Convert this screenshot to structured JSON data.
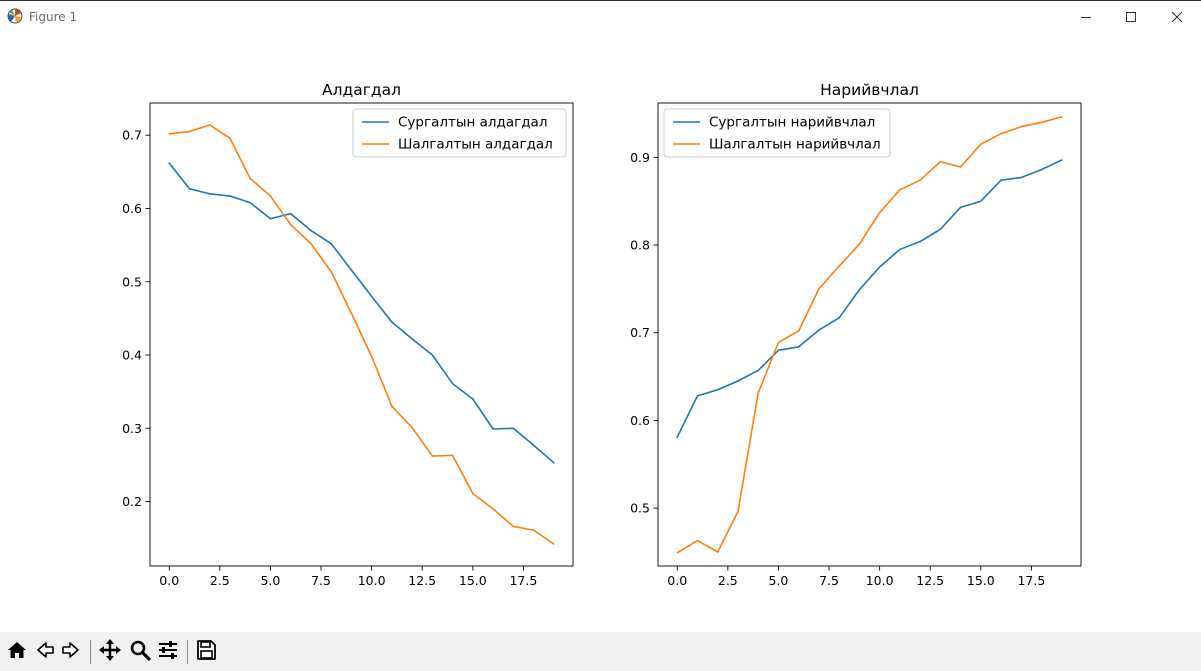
{
  "window": {
    "title": "Figure 1",
    "icons": {
      "app": "matplotlib-icon",
      "minimize": "minimize-icon",
      "maximize": "maximize-icon",
      "close": "close-icon"
    }
  },
  "toolbar": {
    "buttons": [
      {
        "name": "home-button",
        "icon": "home-icon"
      },
      {
        "name": "back-button",
        "icon": "back-arrow-icon"
      },
      {
        "name": "forward-button",
        "icon": "forward-arrow-icon"
      },
      {
        "name": "pan-button",
        "icon": "move-icon"
      },
      {
        "name": "zoom-button",
        "icon": "magnifier-icon"
      },
      {
        "name": "configure-subplots-button",
        "icon": "sliders-icon"
      },
      {
        "name": "save-button",
        "icon": "floppy-disk-icon"
      }
    ]
  },
  "colors": {
    "series_1": "#1f77b4",
    "series_2": "#ff7f0e"
  },
  "chart_data": [
    {
      "type": "line",
      "title": "Алдагдал",
      "xlabel": "",
      "ylabel": "",
      "xlim": [
        -0.95,
        19.95
      ],
      "ylim": [
        0.112,
        0.744
      ],
      "xticks": [
        0.0,
        2.5,
        5.0,
        7.5,
        10.0,
        12.5,
        15.0,
        17.5
      ],
      "xtick_labels": [
        "0.0",
        "2.5",
        "5.0",
        "7.5",
        "10.0",
        "12.5",
        "15.0",
        "17.5"
      ],
      "yticks": [
        0.2,
        0.3,
        0.4,
        0.5,
        0.6,
        0.7
      ],
      "ytick_labels": [
        "0.2",
        "0.3",
        "0.4",
        "0.5",
        "0.6",
        "0.7"
      ],
      "legend_position": "top-right",
      "grid": false,
      "x": [
        0,
        1,
        2,
        3,
        4,
        5,
        6,
        7,
        8,
        9,
        10,
        11,
        12,
        13,
        14,
        15,
        16,
        17,
        18,
        19
      ],
      "series": [
        {
          "name": "Сургалтын алдагдал",
          "color": "#1f77b4",
          "values": [
            0.662,
            0.627,
            0.62,
            0.617,
            0.608,
            0.586,
            0.593,
            0.57,
            0.552,
            0.516,
            0.48,
            0.445,
            0.422,
            0.4,
            0.361,
            0.34,
            0.299,
            0.3,
            0.277,
            0.253
          ]
        },
        {
          "name": "Шалгалтын алдагдал",
          "color": "#ff7f0e",
          "values": [
            0.702,
            0.705,
            0.714,
            0.696,
            0.641,
            0.617,
            0.578,
            0.552,
            0.514,
            0.457,
            0.398,
            0.33,
            0.301,
            0.262,
            0.263,
            0.211,
            0.19,
            0.166,
            0.161,
            0.142
          ]
        }
      ]
    },
    {
      "type": "line",
      "title": "Нарийвчлал",
      "xlabel": "",
      "ylabel": "",
      "xlim": [
        -0.95,
        19.95
      ],
      "ylim": [
        0.434,
        0.962
      ],
      "xticks": [
        0.0,
        2.5,
        5.0,
        7.5,
        10.0,
        12.5,
        15.0,
        17.5
      ],
      "xtick_labels": [
        "0.0",
        "2.5",
        "5.0",
        "7.5",
        "10.0",
        "12.5",
        "15.0",
        "17.5"
      ],
      "yticks": [
        0.5,
        0.6,
        0.7,
        0.8,
        0.9
      ],
      "ytick_labels": [
        "0.5",
        "0.6",
        "0.7",
        "0.8",
        "0.9"
      ],
      "legend_position": "top-left",
      "grid": false,
      "x": [
        0,
        1,
        2,
        3,
        4,
        5,
        6,
        7,
        8,
        9,
        10,
        11,
        12,
        13,
        14,
        15,
        16,
        17,
        18,
        19
      ],
      "series": [
        {
          "name": "Сургалтын нарийвчлал",
          "color": "#1f77b4",
          "values": [
            0.581,
            0.628,
            0.635,
            0.645,
            0.657,
            0.68,
            0.684,
            0.703,
            0.717,
            0.749,
            0.775,
            0.795,
            0.804,
            0.818,
            0.843,
            0.85,
            0.874,
            0.877,
            0.886,
            0.897
          ]
        },
        {
          "name": "Шалгалтын нарийвчлал",
          "color": "#ff7f0e",
          "values": [
            0.449,
            0.463,
            0.45,
            0.496,
            0.631,
            0.689,
            0.702,
            0.75,
            0.776,
            0.801,
            0.837,
            0.863,
            0.874,
            0.895,
            0.889,
            0.915,
            0.927,
            0.935,
            0.94,
            0.946
          ]
        }
      ]
    }
  ]
}
